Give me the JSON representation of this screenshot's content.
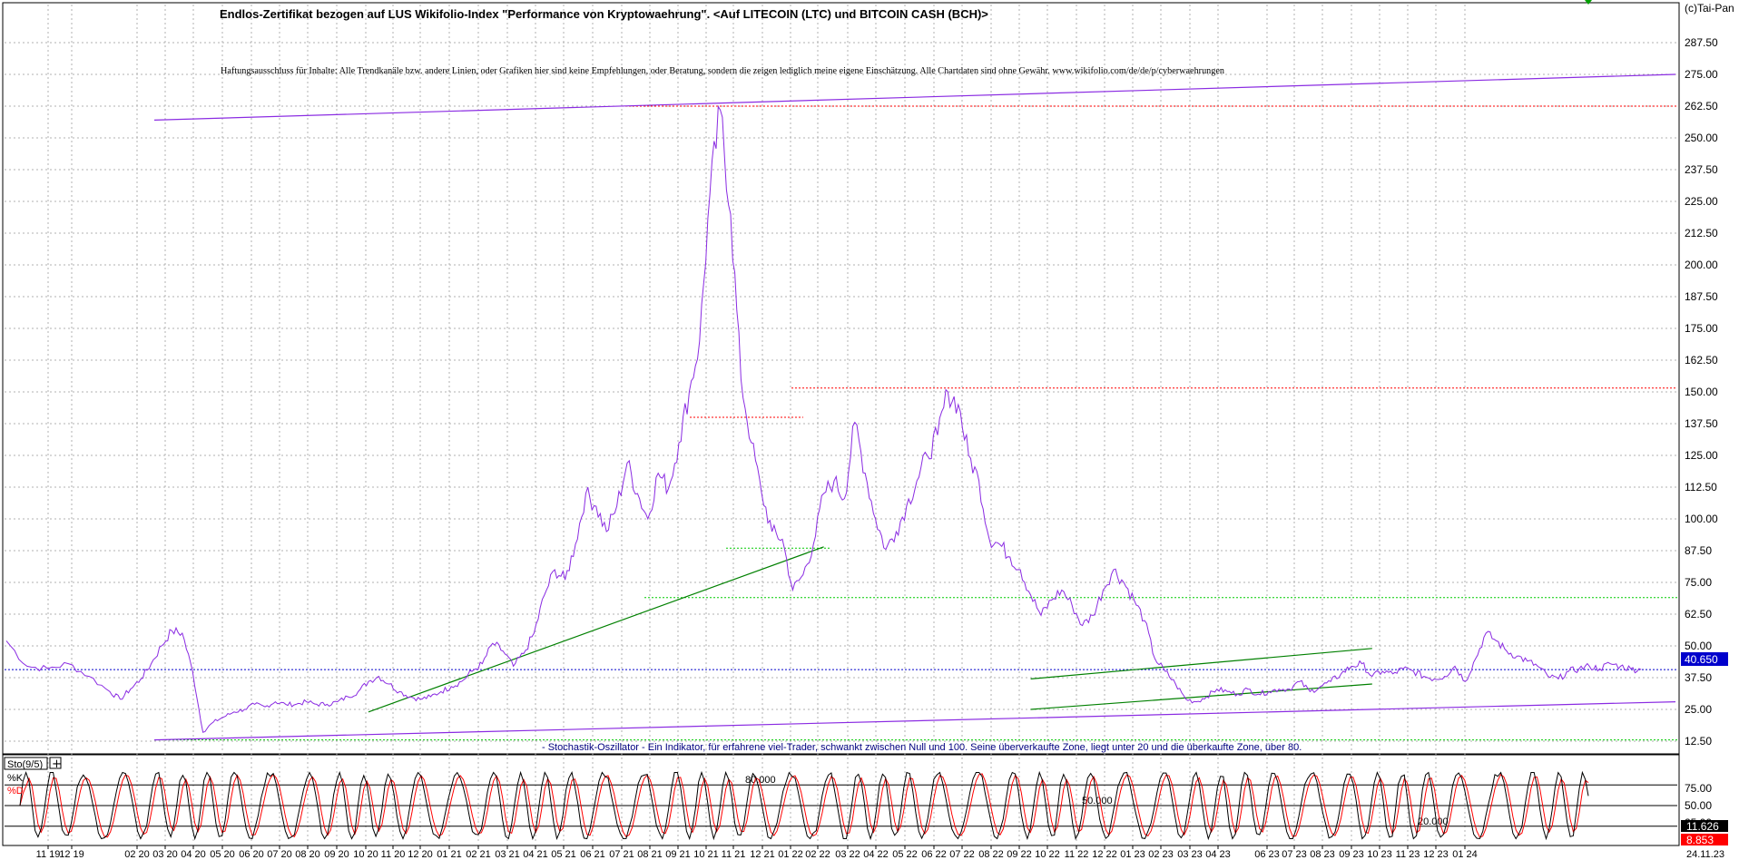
{
  "header": {
    "title": "Endlos-Zertifikat bezogen auf LUS Wikifolio-Index \"Performance von Kryptowaehrung\". <Auf LITECOIN (LTC) und BITCOIN CASH (BCH)>",
    "disclaimer": "Haftungsausschluss für Inhalte: Alle Trendkanäle bzw. andere Linien, oder Grafiken hier sind keine Empfehlungen, oder Beratung, sondern die zeigen lediglich meine eigene Einschätzung. Alle Chartdaten sind ohne Gewähr. www.wikifolio.com/de/de/p/cyberwaehrungen",
    "copyright": "(c)Tai-Pan"
  },
  "colors": {
    "price": "#8a2be2",
    "trend_purple": "#8a2be2",
    "trend_green": "#008000",
    "red_dotted": "#ff0000",
    "green_dotted": "#00cc00",
    "blue_dotted": "#0000cc",
    "stoch_k": "#000000",
    "stoch_d": "#ff0000",
    "grid": "#b0b0b0",
    "last_price_badge": "#0000cc",
    "badge_k": "#000000",
    "badge_d": "#ff0000"
  },
  "chart_data": [
    {
      "type": "line",
      "title": "Endlos-Zertifikat bezogen auf LUS Wikifolio-Index \"Performance von Kryptowaehrung\". <Auf LITECOIN (LTC) und BITCOIN CASH (BCH)>",
      "xlabel": "",
      "ylabel": "",
      "ylim": [
        0,
        300
      ],
      "y_ticks": [
        12.5,
        25.0,
        37.5,
        50.0,
        62.5,
        75.0,
        87.5,
        100.0,
        112.5,
        125.0,
        137.5,
        150.0,
        162.5,
        175.0,
        187.5,
        200.0,
        212.5,
        225.0,
        237.5,
        250.0,
        262.5,
        275.0,
        287.5
      ],
      "y_tick_labels": [
        "12.50",
        "25.00",
        "37.50",
        "50.00",
        "62.50",
        "75.00",
        "87.50",
        "100.00",
        "112.50",
        "125.00",
        "137.50",
        "150.00",
        "162.50",
        "175.00",
        "187.50",
        "200.00",
        "212.50",
        "225.00",
        "237.50",
        "250.00",
        "262.50",
        "275.00",
        "287.50"
      ],
      "x_tick_labels": [
        "11 19",
        "12 19",
        "02 20",
        "03 20",
        "04 20",
        "05 20",
        "06 20",
        "07 20",
        "08 20",
        "09 20",
        "10 20",
        "11 20",
        "12 20",
        "01 21",
        "02 21",
        "03 21",
        "04 21",
        "05 21",
        "06 21",
        "07 21",
        "08 21",
        "09 21",
        "10 21",
        "11 21",
        "12 21",
        "01 22",
        "02 22",
        "03 22",
        "04 22",
        "05 22",
        "06 22",
        "07 22",
        "08 22",
        "09 22",
        "10 22",
        "11 22",
        "12 22",
        "01 23",
        "02 23",
        "03 23",
        "04 23",
        "06 23",
        "07 23",
        "08 23",
        "09 23",
        "10 23",
        "11 23",
        "12 23",
        "01 24"
      ],
      "grid": true,
      "last_value": 40.65,
      "last_value_label": "40.650",
      "date_footer": "24.11.23",
      "series": [
        {
          "values": [
            [
              0,
              52
            ],
            [
              2,
              42
            ],
            [
              4,
              41
            ],
            [
              6,
              43
            ],
            [
              8,
              38
            ],
            [
              10,
              32
            ],
            [
              11,
              29
            ],
            [
              12,
              33
            ],
            [
              13,
              37
            ],
            [
              14,
              43
            ],
            [
              15,
              50
            ],
            [
              16,
              56
            ],
            [
              17,
              55
            ],
            [
              18,
              40
            ],
            [
              19,
              16
            ],
            [
              20,
              20
            ],
            [
              21,
              22
            ],
            [
              22,
              24
            ],
            [
              23,
              25
            ],
            [
              24,
              27
            ],
            [
              25,
              26
            ],
            [
              26,
              28
            ],
            [
              27,
              27
            ],
            [
              28,
              27
            ],
            [
              29,
              28
            ],
            [
              30,
              27
            ],
            [
              31,
              27
            ],
            [
              32,
              28
            ],
            [
              33,
              30
            ],
            [
              34,
              32
            ],
            [
              35,
              36
            ],
            [
              36,
              38
            ],
            [
              37,
              35
            ],
            [
              38,
              32
            ],
            [
              39,
              30
            ],
            [
              40,
              29
            ],
            [
              41,
              30
            ],
            [
              42,
              32
            ],
            [
              43,
              34
            ],
            [
              44,
              36
            ],
            [
              45,
              40
            ],
            [
              46,
              43
            ],
            [
              47,
              51
            ],
            [
              48,
              48
            ],
            [
              49,
              42
            ],
            [
              50,
              47
            ],
            [
              51,
              55
            ],
            [
              52,
              70
            ],
            [
              53,
              80
            ],
            [
              54,
              76
            ],
            [
              55,
              90
            ],
            [
              56,
              110
            ],
            [
              57,
              105
            ],
            [
              58,
              95
            ],
            [
              59,
              105
            ],
            [
              60,
              122
            ],
            [
              61,
              110
            ],
            [
              62,
              100
            ],
            [
              63,
              118
            ],
            [
              64,
              112
            ],
            [
              65,
              130
            ],
            [
              66,
              150
            ],
            [
              67,
              170
            ],
            [
              68,
              228
            ],
            [
              69,
              261
            ],
            [
              70,
              220
            ],
            [
              71,
              155
            ],
            [
              72,
              130
            ],
            [
              73,
              110
            ],
            [
              74,
              95
            ],
            [
              75,
              92
            ],
            [
              76,
              72
            ],
            [
              77,
              78
            ],
            [
              78,
              90
            ],
            [
              79,
              110
            ],
            [
              80,
              115
            ],
            [
              81,
              108
            ],
            [
              82,
              138
            ],
            [
              83,
              118
            ],
            [
              84,
              100
            ],
            [
              85,
              88
            ],
            [
              86,
              95
            ],
            [
              87,
              105
            ],
            [
              88,
              115
            ],
            [
              89,
              125
            ],
            [
              90,
              133
            ],
            [
              91,
              150
            ],
            [
              92,
              145
            ],
            [
              93,
              125
            ],
            [
              94,
              115
            ],
            [
              95,
              92
            ],
            [
              96,
              90
            ],
            [
              97,
              85
            ],
            [
              98,
              80
            ],
            [
              99,
              70
            ],
            [
              100,
              62
            ],
            [
              101,
              68
            ],
            [
              102,
              72
            ],
            [
              103,
              66
            ],
            [
              104,
              58
            ],
            [
              105,
              62
            ],
            [
              106,
              72
            ],
            [
              107,
              80
            ],
            [
              108,
              75
            ],
            [
              109,
              68
            ],
            [
              110,
              60
            ],
            [
              111,
              45
            ],
            [
              112,
              40
            ],
            [
              113,
              35
            ],
            [
              114,
              29
            ],
            [
              115,
              28
            ],
            [
              116,
              30
            ],
            [
              117,
              33
            ],
            [
              118,
              32
            ],
            [
              119,
              31
            ],
            [
              120,
              33
            ],
            [
              121,
              31
            ],
            [
              122,
              32
            ],
            [
              123,
              33
            ],
            [
              124,
              33
            ],
            [
              125,
              36
            ],
            [
              126,
              32
            ],
            [
              127,
              34
            ],
            [
              128,
              36
            ],
            [
              129,
              39
            ],
            [
              130,
              42
            ],
            [
              131,
              43
            ],
            [
              132,
              38
            ],
            [
              133,
              40
            ],
            [
              134,
              39
            ],
            [
              135,
              41
            ],
            [
              136,
              40
            ],
            [
              137,
              38
            ],
            [
              138,
              37
            ],
            [
              139,
              38
            ],
            [
              140,
              42
            ],
            [
              141,
              36
            ],
            [
              142,
              45
            ],
            [
              143,
              55
            ],
            [
              144,
              52
            ],
            [
              145,
              48
            ],
            [
              146,
              46
            ],
            [
              147,
              44
            ],
            [
              148,
              42
            ],
            [
              149,
              38
            ],
            [
              150,
              37
            ],
            [
              151,
              40
            ],
            [
              152,
              41
            ],
            [
              153,
              42
            ],
            [
              154,
              41
            ],
            [
              155,
              43
            ],
            [
              156,
              42
            ],
            [
              157,
              41
            ],
            [
              158,
              40.65
            ]
          ]
        }
      ],
      "levels": [
        {
          "kind": "horizontal",
          "style": "red dotted",
          "value": 262.5
        },
        {
          "kind": "horizontal",
          "style": "red dotted",
          "value": 151.5
        },
        {
          "kind": "horizontal",
          "style": "red dotted",
          "value": 140
        },
        {
          "kind": "horizontal",
          "style": "green dotted",
          "value": 88.5
        },
        {
          "kind": "horizontal",
          "style": "green dotted",
          "value": 69
        },
        {
          "kind": "horizontal",
          "style": "green dotted",
          "value": 13
        },
        {
          "kind": "horizontal",
          "style": "blue dotted",
          "value": 40.65
        }
      ],
      "trendlines": [
        {
          "kind": "resistance",
          "style": "purple",
          "from": [
            14.5,
            257
          ],
          "to": [
            158,
            275
          ]
        },
        {
          "kind": "support",
          "style": "purple",
          "from": [
            14.5,
            13
          ],
          "to": [
            158,
            28
          ]
        },
        {
          "kind": "support",
          "style": "green",
          "from": [
            35,
            24
          ],
          "to": [
            79,
            89
          ]
        },
        {
          "kind": "channel",
          "style": "green",
          "from": [
            99,
            37
          ],
          "to": [
            132,
            49
          ]
        },
        {
          "kind": "channel",
          "style": "green",
          "from": [
            99,
            25
          ],
          "to": [
            132,
            35
          ]
        }
      ]
    },
    {
      "type": "line",
      "title": "Sto(9/5)",
      "indicator_note": "- Stochastik-Oszillator - Ein Indikator, für erfahrene viel-Trader, schwankt zwischen Null und 100. Seine überverkaufte Zone, liegt unter 20 und die überkaufte Zone, über 80.",
      "ylim": [
        0,
        100
      ],
      "y_ticks": [
        25.0,
        50.0,
        75.0
      ],
      "y_tick_labels": [
        "25.00",
        "50.00",
        "75.00"
      ],
      "levels": [
        {
          "value": 80,
          "label": "80.000"
        },
        {
          "value": 50,
          "label": "50.000"
        },
        {
          "value": 20,
          "label": "20.000"
        }
      ],
      "series": [
        {
          "name": "%K",
          "last_value": 11.626,
          "last_value_label": "11.626"
        },
        {
          "name": "%D",
          "last_value": 8.853,
          "last_value_label": "8.853"
        }
      ]
    }
  ]
}
